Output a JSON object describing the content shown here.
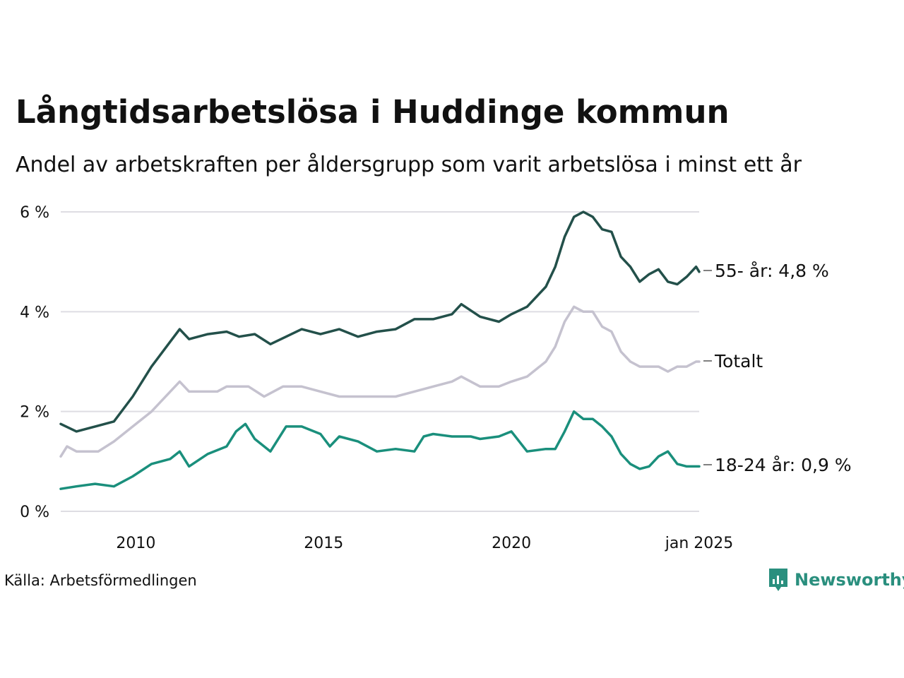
{
  "chart_data": {
    "type": "line",
    "title": "Långtidsarbetslösa i Huddinge kommun",
    "subtitle": "Andel av arbetskraften per åldersgrupp som varit arbetslösa i minst ett år",
    "source": "Källa: Arbetsförmedlingen",
    "brand": "Newsworthy",
    "y_unit": "%",
    "ylim": [
      0,
      6
    ],
    "y_ticks": [
      {
        "value": 0,
        "label": "0 %"
      },
      {
        "value": 2,
        "label": "2 %"
      },
      {
        "value": 4,
        "label": "4 %"
      },
      {
        "value": 6,
        "label": "6 %"
      }
    ],
    "xlim": [
      "2008-01",
      "2025-01"
    ],
    "x_ticks": [
      {
        "value": "2010-01",
        "label": "2010"
      },
      {
        "value": "2015-01",
        "label": "2015"
      },
      {
        "value": "2020-01",
        "label": "2020"
      },
      {
        "value": "2025-01",
        "label": "jan 2025"
      }
    ],
    "grid": true,
    "legend": "end-of-line labels",
    "series": [
      {
        "name": "55- år",
        "end_label": "55- år: 4,8 %",
        "color": "#23504a",
        "points": [
          [
            "2008-01",
            1.75
          ],
          [
            "2008-06",
            1.6
          ],
          [
            "2008-12",
            1.7
          ],
          [
            "2009-06",
            1.8
          ],
          [
            "2009-12",
            2.3
          ],
          [
            "2010-06",
            2.9
          ],
          [
            "2010-12",
            3.4
          ],
          [
            "2011-03",
            3.65
          ],
          [
            "2011-06",
            3.45
          ],
          [
            "2011-12",
            3.55
          ],
          [
            "2012-06",
            3.6
          ],
          [
            "2012-10",
            3.5
          ],
          [
            "2013-03",
            3.55
          ],
          [
            "2013-08",
            3.35
          ],
          [
            "2014-01",
            3.5
          ],
          [
            "2014-06",
            3.65
          ],
          [
            "2014-12",
            3.55
          ],
          [
            "2015-06",
            3.65
          ],
          [
            "2015-12",
            3.5
          ],
          [
            "2016-06",
            3.6
          ],
          [
            "2016-12",
            3.65
          ],
          [
            "2017-06",
            3.85
          ],
          [
            "2017-12",
            3.85
          ],
          [
            "2018-06",
            3.95
          ],
          [
            "2018-09",
            4.15
          ],
          [
            "2019-03",
            3.9
          ],
          [
            "2019-09",
            3.8
          ],
          [
            "2020-01",
            3.95
          ],
          [
            "2020-06",
            4.1
          ],
          [
            "2020-12",
            4.5
          ],
          [
            "2021-03",
            4.9
          ],
          [
            "2021-06",
            5.5
          ],
          [
            "2021-09",
            5.9
          ],
          [
            "2021-12",
            6.0
          ],
          [
            "2022-03",
            5.9
          ],
          [
            "2022-06",
            5.65
          ],
          [
            "2022-09",
            5.6
          ],
          [
            "2022-12",
            5.1
          ],
          [
            "2023-03",
            4.9
          ],
          [
            "2023-06",
            4.6
          ],
          [
            "2023-09",
            4.75
          ],
          [
            "2023-12",
            4.85
          ],
          [
            "2024-03",
            4.6
          ],
          [
            "2024-06",
            4.55
          ],
          [
            "2024-09",
            4.7
          ],
          [
            "2024-12",
            4.9
          ],
          [
            "2025-01",
            4.8
          ]
        ]
      },
      {
        "name": "Totalt",
        "end_label": "Totalt",
        "color": "#c5c2cf",
        "points": [
          [
            "2008-01",
            1.1
          ],
          [
            "2008-03",
            1.3
          ],
          [
            "2008-06",
            1.2
          ],
          [
            "2009-01",
            1.2
          ],
          [
            "2009-06",
            1.4
          ],
          [
            "2009-12",
            1.7
          ],
          [
            "2010-06",
            2.0
          ],
          [
            "2010-12",
            2.4
          ],
          [
            "2011-03",
            2.6
          ],
          [
            "2011-06",
            2.4
          ],
          [
            "2012-03",
            2.4
          ],
          [
            "2012-06",
            2.5
          ],
          [
            "2013-01",
            2.5
          ],
          [
            "2013-06",
            2.3
          ],
          [
            "2013-12",
            2.5
          ],
          [
            "2014-06",
            2.5
          ],
          [
            "2014-12",
            2.4
          ],
          [
            "2015-06",
            2.3
          ],
          [
            "2016-06",
            2.3
          ],
          [
            "2016-12",
            2.3
          ],
          [
            "2017-06",
            2.4
          ],
          [
            "2017-12",
            2.5
          ],
          [
            "2018-06",
            2.6
          ],
          [
            "2018-09",
            2.7
          ],
          [
            "2019-03",
            2.5
          ],
          [
            "2019-09",
            2.5
          ],
          [
            "2020-01",
            2.6
          ],
          [
            "2020-06",
            2.7
          ],
          [
            "2020-12",
            3.0
          ],
          [
            "2021-03",
            3.3
          ],
          [
            "2021-06",
            3.8
          ],
          [
            "2021-09",
            4.1
          ],
          [
            "2021-12",
            4.0
          ],
          [
            "2022-03",
            4.0
          ],
          [
            "2022-06",
            3.7
          ],
          [
            "2022-09",
            3.6
          ],
          [
            "2022-12",
            3.2
          ],
          [
            "2023-03",
            3.0
          ],
          [
            "2023-06",
            2.9
          ],
          [
            "2023-12",
            2.9
          ],
          [
            "2024-03",
            2.8
          ],
          [
            "2024-06",
            2.9
          ],
          [
            "2024-09",
            2.9
          ],
          [
            "2024-12",
            3.0
          ],
          [
            "2025-01",
            3.0
          ]
        ]
      },
      {
        "name": "18-24 år",
        "end_label": "18-24 år: 0,9 %",
        "color": "#1a8f7c",
        "points": [
          [
            "2008-01",
            0.45
          ],
          [
            "2008-06",
            0.5
          ],
          [
            "2008-12",
            0.55
          ],
          [
            "2009-06",
            0.5
          ],
          [
            "2009-12",
            0.7
          ],
          [
            "2010-06",
            0.95
          ],
          [
            "2010-12",
            1.05
          ],
          [
            "2011-03",
            1.2
          ],
          [
            "2011-06",
            0.9
          ],
          [
            "2011-12",
            1.15
          ],
          [
            "2012-06",
            1.3
          ],
          [
            "2012-09",
            1.6
          ],
          [
            "2012-12",
            1.75
          ],
          [
            "2013-03",
            1.45
          ],
          [
            "2013-08",
            1.2
          ],
          [
            "2014-01",
            1.7
          ],
          [
            "2014-06",
            1.7
          ],
          [
            "2014-12",
            1.55
          ],
          [
            "2015-03",
            1.3
          ],
          [
            "2015-06",
            1.5
          ],
          [
            "2015-12",
            1.4
          ],
          [
            "2016-06",
            1.2
          ],
          [
            "2016-12",
            1.25
          ],
          [
            "2017-06",
            1.2
          ],
          [
            "2017-09",
            1.5
          ],
          [
            "2017-12",
            1.55
          ],
          [
            "2018-06",
            1.5
          ],
          [
            "2018-12",
            1.5
          ],
          [
            "2019-03",
            1.45
          ],
          [
            "2019-09",
            1.5
          ],
          [
            "2020-01",
            1.6
          ],
          [
            "2020-06",
            1.2
          ],
          [
            "2020-12",
            1.25
          ],
          [
            "2021-03",
            1.25
          ],
          [
            "2021-06",
            1.6
          ],
          [
            "2021-09",
            2.0
          ],
          [
            "2021-12",
            1.85
          ],
          [
            "2022-03",
            1.85
          ],
          [
            "2022-06",
            1.7
          ],
          [
            "2022-09",
            1.5
          ],
          [
            "2022-12",
            1.15
          ],
          [
            "2023-03",
            0.95
          ],
          [
            "2023-06",
            0.85
          ],
          [
            "2023-09",
            0.9
          ],
          [
            "2023-12",
            1.1
          ],
          [
            "2024-03",
            1.2
          ],
          [
            "2024-06",
            0.95
          ],
          [
            "2024-09",
            0.9
          ],
          [
            "2024-12",
            0.9
          ],
          [
            "2025-01",
            0.9
          ]
        ]
      }
    ]
  }
}
